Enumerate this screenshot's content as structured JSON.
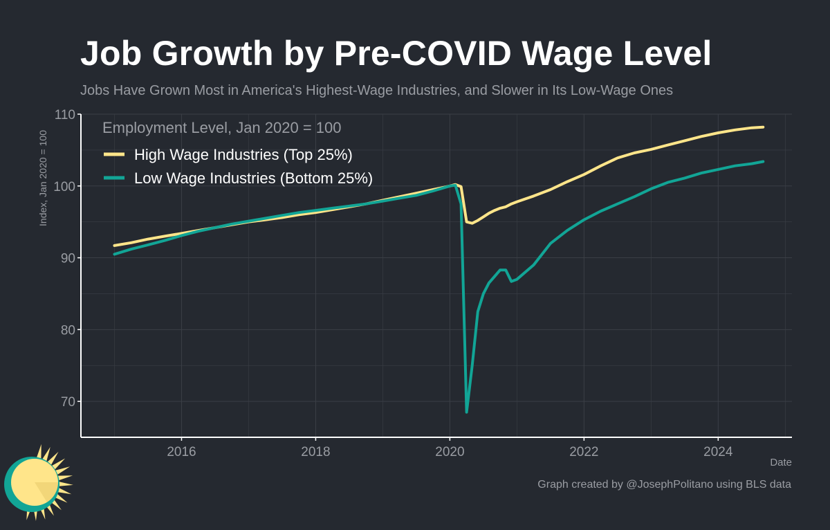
{
  "title": "Job Growth by Pre-COVID Wage Level",
  "subtitle": "Jobs Have Grown Most in America's Highest-Wage Industries, and Slower in Its Low-Wage Ones",
  "caption": "Graph created by @JosephPolitano using BLS data",
  "colors": {
    "background": "#252930",
    "grid": "#3b3f46",
    "axis": "#ffffff",
    "muted_text": "#9a9da3",
    "high_wage": "#ffe58a",
    "low_wage": "#12a596",
    "logo_sun": "#ffe58a",
    "logo_ring": "#12a596"
  },
  "logo": {
    "icon": "sun-logo-icon"
  },
  "chart_data": {
    "type": "line",
    "title": "Employment Level, Jan 2020 = 100",
    "xlabel": "Date",
    "ylabel": "Index, Jan 2020 = 100",
    "xlim": [
      2014.5,
      2025.1
    ],
    "ylim": [
      65,
      110
    ],
    "x_ticks": [
      2016,
      2018,
      2020,
      2022,
      2024
    ],
    "x_tick_labels": [
      "2016",
      "2018",
      "2020",
      "2022",
      "2024"
    ],
    "y_ticks": [
      70,
      80,
      90,
      100,
      110
    ],
    "y_tick_labels": [
      "70",
      "80",
      "90",
      "100",
      "110"
    ],
    "grid": true,
    "legend_position": "top-left",
    "series": [
      {
        "name": "High Wage Industries (Top 25%)",
        "color": "#ffe58a",
        "points": [
          [
            2015.0,
            91.7
          ],
          [
            2015.25,
            92.1
          ],
          [
            2015.5,
            92.6
          ],
          [
            2015.75,
            93.0
          ],
          [
            2016.0,
            93.4
          ],
          [
            2016.25,
            93.8
          ],
          [
            2016.5,
            94.2
          ],
          [
            2016.75,
            94.6
          ],
          [
            2017.0,
            95.0
          ],
          [
            2017.25,
            95.3
          ],
          [
            2017.5,
            95.6
          ],
          [
            2017.75,
            96.0
          ],
          [
            2018.0,
            96.3
          ],
          [
            2018.25,
            96.7
          ],
          [
            2018.5,
            97.1
          ],
          [
            2018.75,
            97.5
          ],
          [
            2019.0,
            98.0
          ],
          [
            2019.25,
            98.5
          ],
          [
            2019.5,
            99.0
          ],
          [
            2019.75,
            99.5
          ],
          [
            2020.0,
            100.0
          ],
          [
            2020.083,
            100.2
          ],
          [
            2020.167,
            99.9
          ],
          [
            2020.25,
            95.0
          ],
          [
            2020.333,
            94.8
          ],
          [
            2020.417,
            95.2
          ],
          [
            2020.5,
            95.7
          ],
          [
            2020.583,
            96.2
          ],
          [
            2020.667,
            96.6
          ],
          [
            2020.75,
            96.9
          ],
          [
            2020.833,
            97.1
          ],
          [
            2020.917,
            97.5
          ],
          [
            2021.0,
            97.8
          ],
          [
            2021.25,
            98.6
          ],
          [
            2021.5,
            99.5
          ],
          [
            2021.75,
            100.6
          ],
          [
            2022.0,
            101.6
          ],
          [
            2022.25,
            102.8
          ],
          [
            2022.5,
            103.9
          ],
          [
            2022.75,
            104.6
          ],
          [
            2023.0,
            105.1
          ],
          [
            2023.25,
            105.7
          ],
          [
            2023.5,
            106.3
          ],
          [
            2023.75,
            106.9
          ],
          [
            2024.0,
            107.4
          ],
          [
            2024.25,
            107.8
          ],
          [
            2024.5,
            108.1
          ],
          [
            2024.67,
            108.2
          ]
        ]
      },
      {
        "name": "Low Wage Industries (Bottom 25%)",
        "color": "#12a596",
        "points": [
          [
            2015.0,
            90.5
          ],
          [
            2015.25,
            91.2
          ],
          [
            2015.5,
            91.8
          ],
          [
            2015.75,
            92.4
          ],
          [
            2016.0,
            93.1
          ],
          [
            2016.25,
            93.7
          ],
          [
            2016.5,
            94.2
          ],
          [
            2016.75,
            94.7
          ],
          [
            2017.0,
            95.1
          ],
          [
            2017.25,
            95.5
          ],
          [
            2017.5,
            95.9
          ],
          [
            2017.75,
            96.3
          ],
          [
            2018.0,
            96.6
          ],
          [
            2018.25,
            96.9
          ],
          [
            2018.5,
            97.2
          ],
          [
            2018.75,
            97.5
          ],
          [
            2019.0,
            97.9
          ],
          [
            2019.25,
            98.3
          ],
          [
            2019.5,
            98.7
          ],
          [
            2019.75,
            99.3
          ],
          [
            2020.0,
            100.0
          ],
          [
            2020.083,
            100.1
          ],
          [
            2020.167,
            97.5
          ],
          [
            2020.25,
            68.5
          ],
          [
            2020.333,
            75.0
          ],
          [
            2020.417,
            82.5
          ],
          [
            2020.5,
            85.0
          ],
          [
            2020.583,
            86.5
          ],
          [
            2020.667,
            87.4
          ],
          [
            2020.75,
            88.3
          ],
          [
            2020.833,
            88.3
          ],
          [
            2020.917,
            86.7
          ],
          [
            2021.0,
            87.0
          ],
          [
            2021.25,
            89.0
          ],
          [
            2021.5,
            92.0
          ],
          [
            2021.75,
            93.8
          ],
          [
            2022.0,
            95.3
          ],
          [
            2022.25,
            96.5
          ],
          [
            2022.5,
            97.5
          ],
          [
            2022.75,
            98.5
          ],
          [
            2023.0,
            99.6
          ],
          [
            2023.25,
            100.5
          ],
          [
            2023.5,
            101.1
          ],
          [
            2023.75,
            101.8
          ],
          [
            2024.0,
            102.3
          ],
          [
            2024.25,
            102.8
          ],
          [
            2024.5,
            103.1
          ],
          [
            2024.67,
            103.4
          ]
        ]
      }
    ]
  }
}
